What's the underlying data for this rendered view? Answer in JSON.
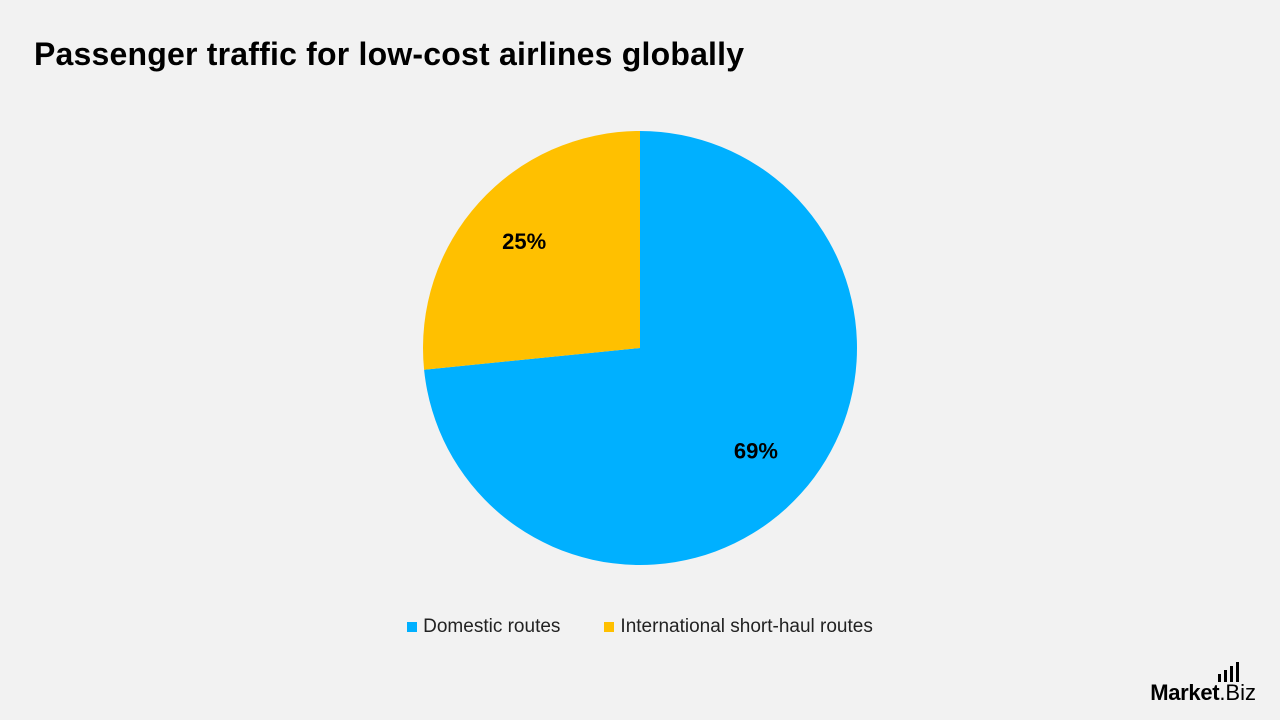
{
  "title": "Passenger traffic for low-cost airlines globally",
  "chart_data": {
    "type": "pie",
    "title": "Passenger traffic for low-cost airlines globally",
    "categories": [
      "Domestic routes",
      "International short-haul routes"
    ],
    "values": [
      69,
      25
    ],
    "value_labels": [
      "69%",
      "25%"
    ],
    "colors": [
      "#00b0ff",
      "#ffc000"
    ],
    "legend_position": "bottom",
    "start_angle": "12 o'clock, clockwise"
  },
  "logo": {
    "brand": "Market",
    "suffix": ".Biz"
  }
}
